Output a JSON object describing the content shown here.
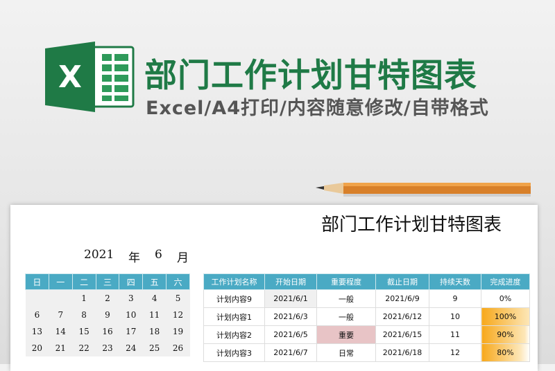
{
  "banner": {
    "title": "部门工作计划甘特图表",
    "subtitle": "Excel/A4打印/内容随意修改/自带格式",
    "logo_letter": "X",
    "brand_color": "#1f7a46"
  },
  "sheet": {
    "title": "部门工作计划甘特图表",
    "year": "2021",
    "year_unit": "年",
    "month": "6",
    "month_unit": "月",
    "calendar": {
      "weekdays": [
        "日",
        "一",
        "二",
        "三",
        "四",
        "五",
        "六"
      ],
      "weeks": [
        [
          "",
          "",
          "1",
          "2",
          "3",
          "4",
          "5"
        ],
        [
          "6",
          "7",
          "8",
          "9",
          "10",
          "11",
          "12"
        ],
        [
          "13",
          "14",
          "15",
          "16",
          "17",
          "18",
          "19"
        ],
        [
          "20",
          "21",
          "22",
          "23",
          "24",
          "25",
          "26"
        ]
      ]
    },
    "table": {
      "headers": [
        "工作计划名称",
        "开始日期",
        "重要程度",
        "截止日期",
        "持续天数",
        "完成进度"
      ],
      "rows": [
        {
          "name": "计划内容9",
          "start": "2021/6/1",
          "priority": "一般",
          "end": "2021/6/9",
          "days": "9",
          "progress": "0%",
          "progress_value": 0
        },
        {
          "name": "计划内容1",
          "start": "2021/6/3",
          "priority": "一般",
          "end": "2021/6/12",
          "days": "10",
          "progress": "100%",
          "progress_value": 100
        },
        {
          "name": "计划内容2",
          "start": "2021/6/5",
          "priority": "重要",
          "end": "2021/6/15",
          "days": "11",
          "progress": "90%",
          "progress_value": 90
        },
        {
          "name": "计划内容3",
          "start": "2021/6/7",
          "priority": "日常",
          "end": "2021/6/18",
          "days": "12",
          "progress": "80%",
          "progress_value": 80
        }
      ],
      "header_color": "#4aaac4",
      "important_color": "#e8c4c6",
      "progress_color": "#f7a81b"
    }
  }
}
